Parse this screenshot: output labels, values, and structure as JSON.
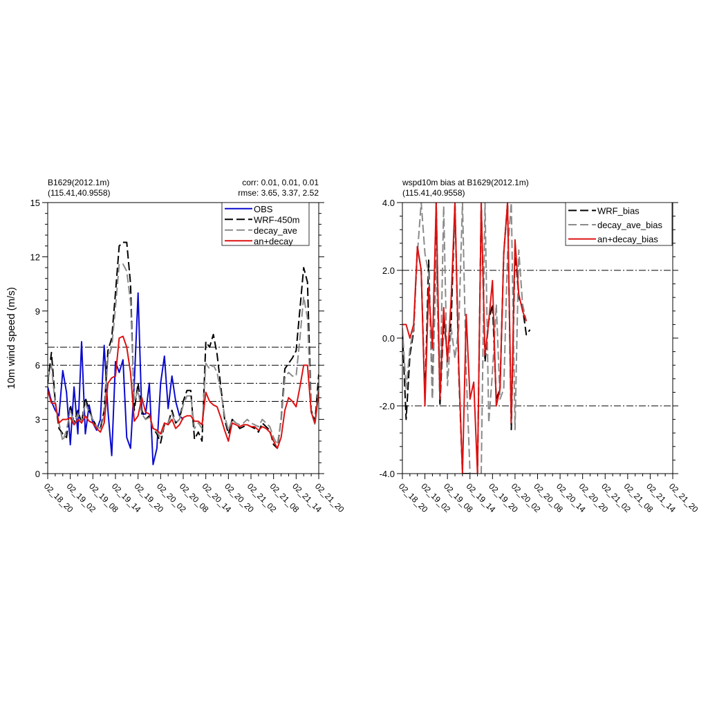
{
  "chart_data": [
    {
      "type": "line",
      "title_left": [
        "B1629(2012.1m)",
        "(115.41,40.9558)"
      ],
      "title_right": [
        "corr:  0.01, 0.01, 0.01",
        "rmse: 3.65, 3.37, 2.52"
      ],
      "ylabel": "10m wind speed (m/s)",
      "xlabel": "",
      "ylim": [
        0,
        15
      ],
      "yticks": [
        0,
        3,
        6,
        9,
        12,
        15
      ],
      "ytick_labels": [
        "0",
        "3",
        "6",
        "9",
        "12",
        "15"
      ],
      "xlim": [
        0,
        72
      ],
      "xtick_labels": [
        "02_18_20",
        "02_19_02",
        "02_19_08",
        "02_19_14",
        "02_19_20",
        "02_20_02",
        "02_20_08",
        "02_20_14",
        "02_20_20",
        "02_21_02",
        "02_21_08",
        "02_21_14",
        "02_21_20"
      ],
      "reference_lines": [
        4,
        5,
        6,
        7
      ],
      "legend_position": "top-right",
      "series": [
        {
          "name": "OBS",
          "color": "#0a0ad0",
          "dash": "solid",
          "values": [
            4.8,
            4.0,
            3.5,
            3.2,
            5.7,
            4.5,
            1.6,
            4.8,
            2.2,
            7.3,
            2.2,
            3.8,
            2.8,
            2.4,
            3.0,
            7.1,
            3.5,
            1.0,
            6.2,
            5.6,
            6.3,
            2.0,
            1.4,
            5.0,
            10.0,
            3.3,
            3.3,
            5.0,
            0.5,
            1.4,
            5.0,
            6.5,
            3.6,
            5.4,
            4.0,
            3.2,
            3.0,
            null,
            null,
            null,
            null,
            null,
            null,
            null,
            null,
            null,
            null,
            null,
            null,
            null,
            null,
            null,
            null,
            null,
            null,
            null,
            null,
            null,
            null,
            null,
            null,
            null,
            null,
            null,
            null,
            null,
            null,
            null,
            null,
            null,
            null,
            null,
            null
          ]
        },
        {
          "name": "WRF-450m",
          "color": "#000000",
          "dash": "dash",
          "values": [
            5.0,
            6.7,
            4.0,
            2.5,
            2.2,
            2.0,
            3.8,
            2.8,
            3.5,
            2.8,
            4.2,
            3.5,
            3.0,
            2.6,
            2.5,
            3.5,
            6.8,
            7.5,
            10.0,
            12.6,
            12.8,
            12.8,
            10.5,
            3.5,
            5.0,
            3.5,
            3.0,
            3.2,
            2.5,
            2.2,
            1.7,
            2.7,
            2.8,
            3.5,
            2.8,
            3.0,
            4.0,
            4.6,
            4.6,
            1.9,
            2.3,
            1.8,
            7.3,
            7.0,
            7.7,
            6.6,
            4.8,
            3.0,
            2.2,
            3.0,
            2.8,
            2.5,
            2.6,
            2.7,
            2.6,
            2.5,
            2.3,
            2.8,
            2.6,
            2.4,
            1.6,
            1.4,
            3.0,
            5.8,
            6.1,
            6.4,
            6.8,
            9.1,
            11.4,
            10.6,
            3.5,
            2.9,
            5.5
          ]
        },
        {
          "name": "decay_ave",
          "color": "#8a8a8a",
          "dash": "dash",
          "values": [
            5.2,
            6.0,
            3.8,
            2.8,
            1.8,
            2.4,
            3.5,
            2.8,
            3.3,
            2.8,
            3.9,
            3.4,
            3.0,
            2.6,
            2.5,
            3.2,
            6.4,
            7.0,
            9.2,
            11.6,
            11.6,
            11.2,
            9.5,
            4.0,
            4.6,
            3.3,
            3.0,
            3.1,
            2.5,
            2.3,
            2.0,
            2.7,
            2.8,
            3.3,
            2.8,
            3.0,
            3.8,
            4.3,
            4.3,
            2.5,
            2.8,
            2.5,
            6.1,
            5.8,
            6.0,
            5.6,
            4.5,
            3.2,
            2.4,
            3.0,
            2.8,
            2.7,
            2.8,
            3.0,
            2.8,
            2.7,
            2.6,
            3.0,
            2.8,
            2.6,
            2.0,
            1.6,
            2.9,
            5.3,
            5.6,
            5.4,
            5.4,
            7.5,
            9.8,
            8.6,
            3.4,
            2.7,
            5.0
          ]
        },
        {
          "name": "an+decay",
          "color": "#dd1111",
          "dash": "solid",
          "values": [
            4.6,
            3.9,
            3.9,
            2.8,
            3.0,
            3.0,
            3.1,
            2.7,
            3.0,
            2.8,
            3.2,
            2.9,
            2.8,
            2.5,
            2.3,
            2.8,
            5.0,
            5.3,
            5.4,
            7.5,
            7.6,
            7.0,
            5.6,
            2.9,
            3.2,
            4.2,
            3.4,
            3.3,
            2.5,
            2.4,
            2.2,
            2.8,
            2.7,
            3.0,
            2.5,
            2.7,
            3.1,
            3.2,
            3.2,
            2.9,
            2.9,
            2.7,
            4.5,
            4.0,
            3.8,
            3.7,
            3.1,
            2.4,
            1.8,
            2.8,
            2.7,
            2.6,
            2.7,
            2.7,
            2.6,
            2.6,
            2.4,
            2.6,
            2.5,
            2.3,
            1.8,
            1.4,
            2.0,
            3.5,
            4.2,
            4.0,
            3.7,
            4.8,
            6.0,
            6.0,
            3.4,
            2.8,
            4.5
          ]
        }
      ]
    },
    {
      "type": "line",
      "title_left": [
        "wspd10m bias at B1629(2012.1m)",
        "(115.41,40.9558)"
      ],
      "ylabel": "",
      "xlabel": "",
      "ylim": [
        -4,
        4
      ],
      "yticks": [
        -4,
        -2,
        0,
        2,
        4
      ],
      "ytick_labels": [
        "-4.0",
        "-2.0",
        "0.0",
        "2.0",
        "4.0"
      ],
      "xlim": [
        0,
        72
      ],
      "xtick_labels": [
        "02_18_20",
        "02_19_02",
        "02_19_08",
        "02_19_14",
        "02_19_20",
        "02_20_02",
        "02_20_08",
        "02_20_14",
        "02_20_20",
        "02_21_02",
        "02_21_08",
        "02_21_14",
        "02_21_20"
      ],
      "reference_lines": [
        -2,
        2
      ],
      "legend_position": "top-right",
      "series": [
        {
          "name": "WRF_bias",
          "color": "#000000",
          "dash": "dash",
          "values": [
            0.2,
            -2.4,
            -0.5,
            0.2,
            2.7,
            2.0,
            -1.8,
            2.3,
            -1.8,
            4.0,
            -2.0,
            0.5,
            -0.5,
            0.5,
            4.0,
            -1.0,
            -4.0,
            -4.0,
            -4.0,
            -4.0,
            -4.0,
            4.0,
            -0.7,
            0.5,
            1.0,
            -1.8,
            -1.5,
            2.5,
            4.0,
            -2.7,
            2.6,
            1.2,
            0.9,
            0.1,
            0.25
          ]
        },
        {
          "name": "decay_ave_bias",
          "color": "#8a8a8a",
          "dash": "dash",
          "values": [
            0.3,
            -1.5,
            -0.3,
            0.3,
            2.5,
            4.0,
            2.5,
            1.9,
            -1.8,
            2.3,
            -1.8,
            3.9,
            -1.4,
            0.3,
            -0.6,
            0.3,
            4.0,
            -1.0,
            -4.0,
            -4.0,
            -4.0,
            -4.0,
            4.0,
            -2.5,
            -1.0,
            1.0,
            -1.8,
            -1.5,
            2.5,
            4.0,
            -2.7,
            2.6,
            1.0,
            0.5
          ]
        },
        {
          "name": "an+decay_bias",
          "color": "#dd1111",
          "dash": "solid",
          "values": [
            0.4,
            0.4,
            0.0,
            0.4,
            2.7,
            2.0,
            -2.0,
            1.5,
            -0.3,
            4.0,
            -1.8,
            0.9,
            -0.7,
            1.2,
            4.0,
            -0.8,
            -4.0,
            0.7,
            -1.8,
            -1.3,
            -4.0,
            4.0,
            -0.5,
            0.5,
            1.7,
            -2.0,
            -1.5,
            2.5,
            4.0,
            -2.5,
            2.9,
            1.3,
            0.8,
            0.5
          ]
        }
      ]
    }
  ]
}
